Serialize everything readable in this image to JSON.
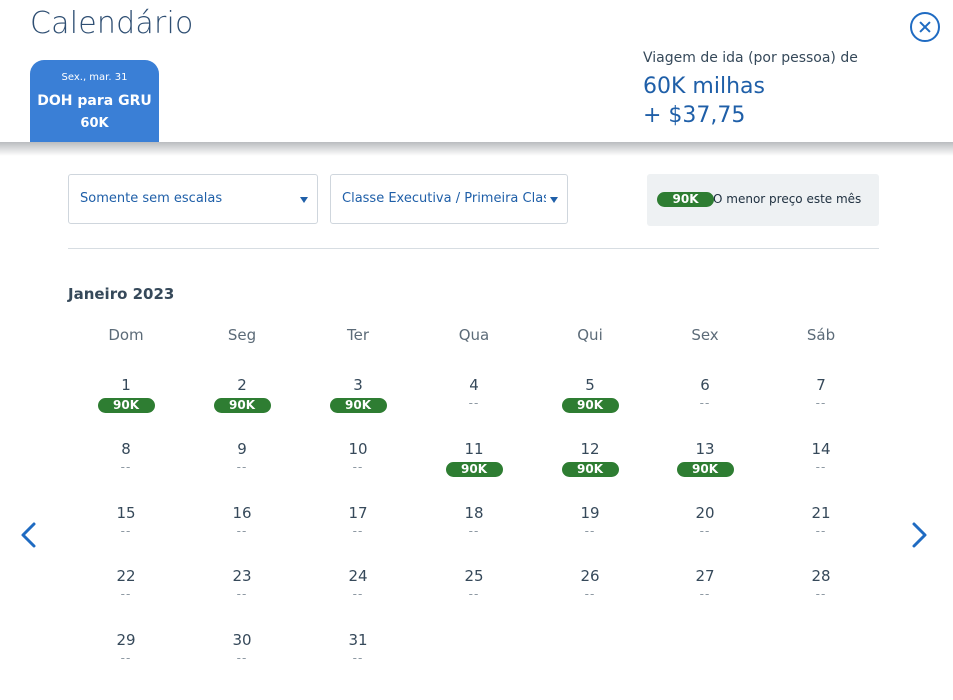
{
  "header": {
    "title": "Calendário",
    "close_icon": "close-icon"
  },
  "flight_tab": {
    "date": "Sex., mar. 31",
    "route": "DOH para GRU",
    "price": "60K"
  },
  "fare_summary": {
    "label": "Viagem de ida (por pessoa) de",
    "miles": "60K milhas",
    "cash": "+ $37,75"
  },
  "filters": {
    "stops": "Somente sem escalas",
    "cabin": "Classe Executiva / Primeira Classe"
  },
  "legend": {
    "pill": "90K",
    "text": "O menor preço este mês"
  },
  "calendar": {
    "month": "Janeiro 2023",
    "weekdays": [
      "Dom",
      "Seg",
      "Ter",
      "Qua",
      "Qui",
      "Sex",
      "Sáb"
    ],
    "days": [
      {
        "num": "1",
        "price": "90K"
      },
      {
        "num": "2",
        "price": "90K"
      },
      {
        "num": "3",
        "price": "90K"
      },
      {
        "num": "4",
        "price": "--"
      },
      {
        "num": "5",
        "price": "90K"
      },
      {
        "num": "6",
        "price": "--"
      },
      {
        "num": "7",
        "price": "--"
      },
      {
        "num": "8",
        "price": "--"
      },
      {
        "num": "9",
        "price": "--"
      },
      {
        "num": "10",
        "price": "--"
      },
      {
        "num": "11",
        "price": "90K"
      },
      {
        "num": "12",
        "price": "90K"
      },
      {
        "num": "13",
        "price": "90K"
      },
      {
        "num": "14",
        "price": "--"
      },
      {
        "num": "15",
        "price": "--"
      },
      {
        "num": "16",
        "price": "--"
      },
      {
        "num": "17",
        "price": "--"
      },
      {
        "num": "18",
        "price": "--"
      },
      {
        "num": "19",
        "price": "--"
      },
      {
        "num": "20",
        "price": "--"
      },
      {
        "num": "21",
        "price": "--"
      },
      {
        "num": "22",
        "price": "--"
      },
      {
        "num": "23",
        "price": "--"
      },
      {
        "num": "24",
        "price": "--"
      },
      {
        "num": "25",
        "price": "--"
      },
      {
        "num": "26",
        "price": "--"
      },
      {
        "num": "27",
        "price": "--"
      },
      {
        "num": "28",
        "price": "--"
      },
      {
        "num": "29",
        "price": "--"
      },
      {
        "num": "30",
        "price": "--"
      },
      {
        "num": "31",
        "price": "--"
      }
    ],
    "prev_icon": "chevron-left-icon",
    "next_icon": "chevron-right-icon"
  },
  "colors": {
    "accent_blue": "#3a7fd6",
    "text_blue": "#1f5fa8",
    "price_green": "#2e7d32"
  }
}
